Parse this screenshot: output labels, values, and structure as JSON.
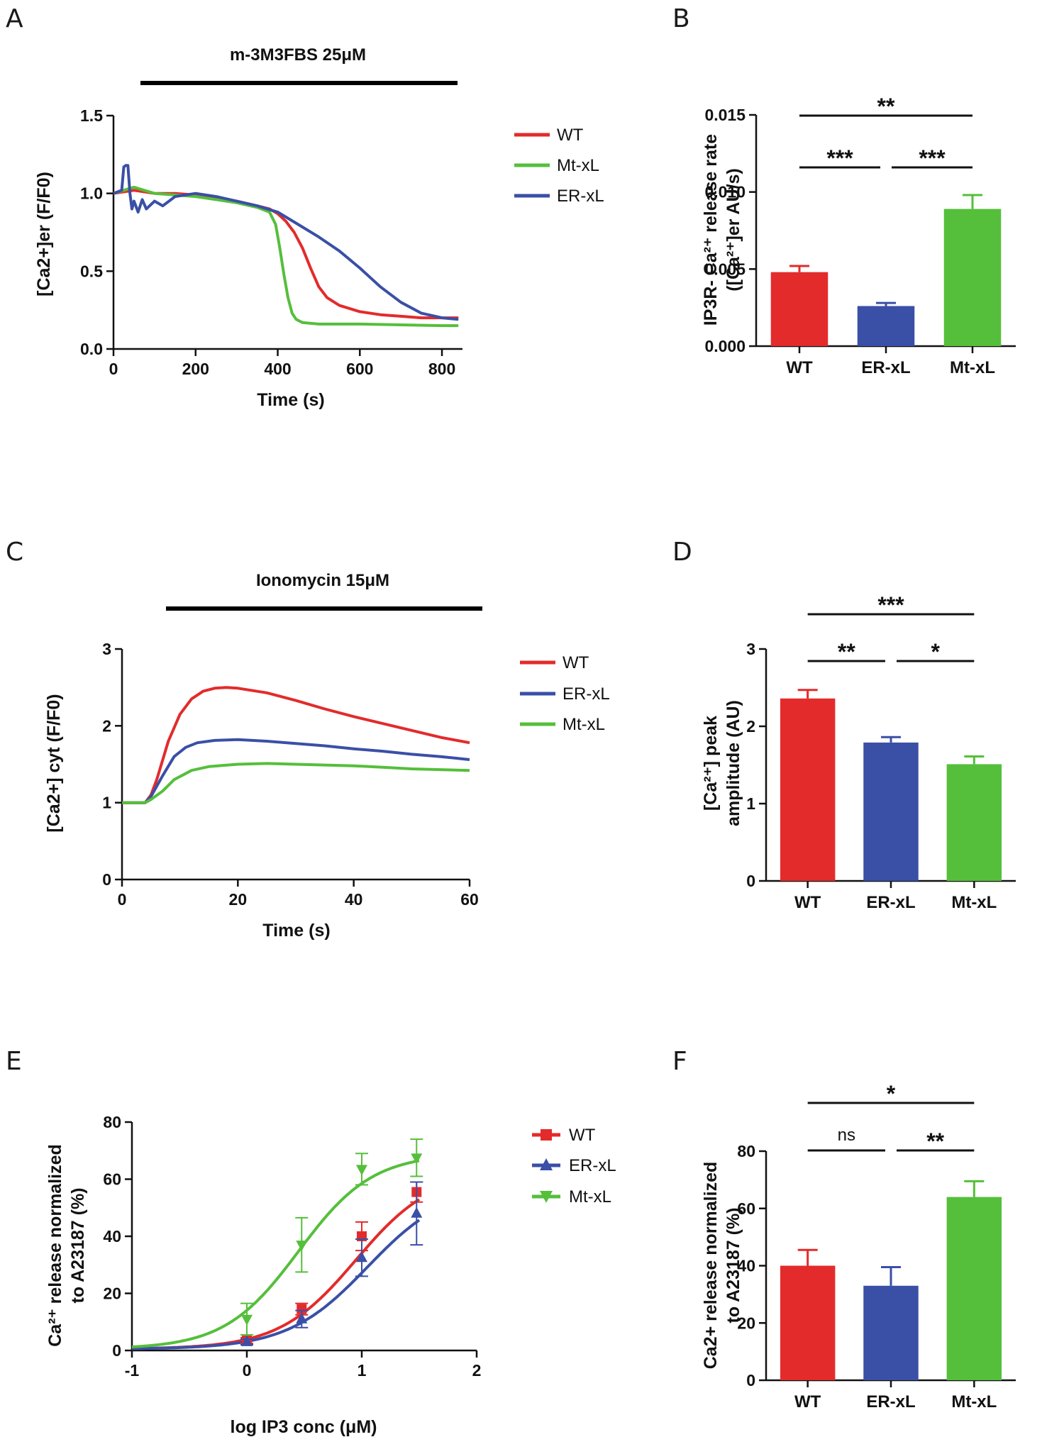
{
  "chart_data": [
    {
      "id": "A",
      "type": "line",
      "panel_label": "A",
      "treatment": "m-3M3FBS 25μM",
      "xlabel": "Time (s)",
      "ylabel": "[Ca2+]er (F/F0)",
      "xlim": [
        0,
        850
      ],
      "ylim": [
        0,
        1.5
      ],
      "xticks": [
        0,
        200,
        400,
        600,
        800
      ],
      "yticks": [
        0.0,
        0.5,
        1.0,
        1.5
      ],
      "ytick_labels": [
        "0.0",
        "0.5",
        "1.0",
        "1.5"
      ],
      "legend": [
        "WT",
        "Mt-xL",
        "ER-xL"
      ],
      "series": [
        {
          "name": "WT",
          "color": "#e32b2b",
          "x": [
            0,
            50,
            100,
            150,
            200,
            250,
            300,
            350,
            380,
            400,
            420,
            440,
            460,
            480,
            500,
            520,
            550,
            600,
            650,
            700,
            750,
            800,
            840
          ],
          "y": [
            1.0,
            1.02,
            1.0,
            1.0,
            0.99,
            0.97,
            0.95,
            0.92,
            0.9,
            0.87,
            0.82,
            0.75,
            0.65,
            0.52,
            0.4,
            0.33,
            0.28,
            0.24,
            0.22,
            0.21,
            0.2,
            0.2,
            0.2
          ]
        },
        {
          "name": "Mt-xL",
          "color": "#55bf3b",
          "x": [
            0,
            50,
            100,
            150,
            200,
            250,
            300,
            350,
            380,
            395,
            405,
            415,
            425,
            435,
            445,
            460,
            500,
            600,
            700,
            800,
            840
          ],
          "y": [
            1.0,
            1.04,
            1.0,
            0.99,
            0.98,
            0.96,
            0.94,
            0.91,
            0.88,
            0.8,
            0.65,
            0.48,
            0.33,
            0.23,
            0.19,
            0.17,
            0.16,
            0.16,
            0.155,
            0.15,
            0.15
          ]
        },
        {
          "name": "ER-xL",
          "color": "#3a4fa6",
          "x": [
            0,
            20,
            25,
            30,
            35,
            40,
            45,
            50,
            60,
            70,
            80,
            100,
            120,
            150,
            200,
            250,
            300,
            350,
            400,
            450,
            500,
            550,
            600,
            650,
            700,
            750,
            800,
            840
          ],
          "y": [
            1.0,
            1.02,
            1.17,
            1.18,
            1.18,
            1.0,
            0.9,
            0.95,
            0.88,
            0.96,
            0.9,
            0.95,
            0.92,
            0.98,
            1.0,
            0.98,
            0.95,
            0.92,
            0.88,
            0.8,
            0.72,
            0.63,
            0.52,
            0.4,
            0.3,
            0.23,
            0.2,
            0.19
          ]
        }
      ]
    },
    {
      "id": "B",
      "type": "bar",
      "panel_label": "B",
      "ylabel_line1": "IP3R- Ca²⁺ release rate",
      "ylabel_line2": "([Ca²⁺]er AU/s)",
      "ylim": [
        0,
        0.015
      ],
      "yticks": [
        0.0,
        0.005,
        0.01,
        0.015
      ],
      "ytick_labels": [
        "0.000",
        "0.005",
        "0.010",
        "0.015"
      ],
      "categories": [
        "WT",
        "ER-xL",
        "Mt-xL"
      ],
      "values": [
        0.0048,
        0.0026,
        0.0089
      ],
      "errors": [
        0.0004,
        0.0002,
        0.0009
      ],
      "colors": [
        "#e32b2b",
        "#3a4fa6",
        "#55bf3b"
      ],
      "significance": [
        {
          "from": 0,
          "to": 2,
          "label": "**"
        },
        {
          "from": 0,
          "to": 1,
          "label": "***"
        },
        {
          "from": 1,
          "to": 2,
          "label": "***"
        }
      ]
    },
    {
      "id": "C",
      "type": "line",
      "panel_label": "C",
      "treatment": "Ionomycin 15μM",
      "xlabel": "Time (s)",
      "ylabel": "[Ca2+] cyt (F/F0)",
      "xlim": [
        0,
        60
      ],
      "ylim": [
        0,
        3
      ],
      "xticks": [
        0,
        20,
        40,
        60
      ],
      "yticks": [
        0,
        1,
        2,
        3
      ],
      "ytick_labels": [
        "0",
        "1",
        "2",
        "3"
      ],
      "legend": [
        "WT",
        "ER-xL",
        "Mt-xL"
      ],
      "series": [
        {
          "name": "WT",
          "color": "#e32b2b",
          "x": [
            0,
            4,
            5,
            6,
            8,
            10,
            12,
            14,
            16,
            18,
            20,
            25,
            30,
            35,
            40,
            45,
            50,
            55,
            60
          ],
          "y": [
            1.0,
            1.0,
            1.1,
            1.3,
            1.8,
            2.15,
            2.35,
            2.45,
            2.49,
            2.5,
            2.49,
            2.43,
            2.33,
            2.22,
            2.12,
            2.03,
            1.94,
            1.85,
            1.78
          ]
        },
        {
          "name": "ER-xL",
          "color": "#3a4fa6",
          "x": [
            0,
            4,
            5,
            7,
            9,
            11,
            13,
            16,
            20,
            25,
            30,
            35,
            40,
            45,
            50,
            55,
            60
          ],
          "y": [
            1.0,
            1.0,
            1.08,
            1.35,
            1.6,
            1.72,
            1.78,
            1.81,
            1.82,
            1.8,
            1.77,
            1.74,
            1.7,
            1.67,
            1.63,
            1.6,
            1.56
          ]
        },
        {
          "name": "Mt-xL",
          "color": "#55bf3b",
          "x": [
            0,
            4,
            5,
            7,
            9,
            12,
            15,
            20,
            25,
            30,
            35,
            40,
            45,
            50,
            55,
            60
          ],
          "y": [
            1.0,
            1.0,
            1.04,
            1.15,
            1.3,
            1.42,
            1.47,
            1.5,
            1.51,
            1.5,
            1.49,
            1.48,
            1.46,
            1.44,
            1.43,
            1.42
          ]
        }
      ]
    },
    {
      "id": "D",
      "type": "bar",
      "panel_label": "D",
      "ylabel_line1": "[Ca²⁺] peak",
      "ylabel_line2": "amplitude (AU)",
      "ylim": [
        0,
        3
      ],
      "yticks": [
        0,
        1,
        2,
        3
      ],
      "ytick_labels": [
        "0",
        "1",
        "2",
        "3"
      ],
      "categories": [
        "WT",
        "ER-xL",
        "Mt-xL"
      ],
      "values": [
        2.36,
        1.79,
        1.51
      ],
      "errors": [
        0.11,
        0.07,
        0.1
      ],
      "colors": [
        "#e32b2b",
        "#3a4fa6",
        "#55bf3b"
      ],
      "significance": [
        {
          "from": 0,
          "to": 2,
          "label": "***"
        },
        {
          "from": 0,
          "to": 1,
          "label": "**"
        },
        {
          "from": 1,
          "to": 2,
          "label": "*"
        }
      ]
    },
    {
      "id": "E",
      "type": "scatter",
      "panel_label": "E",
      "xlabel": "log IP3 conc (μM)",
      "ylabel_line1": "Ca²⁺ release normalized",
      "ylabel_line2": "to A23187 (%)",
      "xlim": [
        -1,
        2
      ],
      "ylim": [
        0,
        80
      ],
      "xticks": [
        -1,
        0,
        1,
        2
      ],
      "yticks": [
        0,
        20,
        40,
        60,
        80
      ],
      "ytick_labels": [
        "0",
        "20",
        "40",
        "60",
        "80"
      ],
      "xtick_labels": [
        "-1",
        "0",
        "1",
        "2"
      ],
      "legend": [
        "WT",
        "ER-xL",
        "Mt-xL"
      ],
      "series": [
        {
          "name": "WT",
          "color": "#e32b2b",
          "marker": "square",
          "x": [
            0,
            0.477,
            1,
            1.477
          ],
          "y": [
            3.5,
            14.5,
            40,
            55.5
          ],
          "err": [
            1,
            2,
            5,
            3.5
          ],
          "fit": {
            "bottom": 0.5,
            "top": 63,
            "logEC50": 0.95,
            "hill": 1.3
          }
        },
        {
          "name": "ER-xL",
          "color": "#3a4fa6",
          "marker": "triangle-up",
          "x": [
            0,
            0.477,
            1,
            1.477
          ],
          "y": [
            3,
            11,
            32.5,
            48
          ],
          "err": [
            1,
            3,
            6.5,
            11
          ],
          "fit": {
            "bottom": 0.5,
            "top": 58,
            "logEC50": 1.05,
            "hill": 1.25
          }
        },
        {
          "name": "Mt-xL",
          "color": "#55bf3b",
          "marker": "triangle-down",
          "x": [
            0,
            0.477,
            1,
            1.477
          ],
          "y": [
            11,
            37,
            63.5,
            67.5
          ],
          "err": [
            5.5,
            9.5,
            5.5,
            6.5
          ],
          "fit": {
            "bottom": 0.5,
            "top": 69,
            "logEC50": 0.45,
            "hill": 1.35
          }
        }
      ]
    },
    {
      "id": "F",
      "type": "bar",
      "panel_label": "F",
      "ylabel_line1": "Ca2+ release normalized",
      "ylabel_line2": "to A23187 (%)",
      "ylim": [
        0,
        80
      ],
      "yticks": [
        0,
        20,
        40,
        60,
        80
      ],
      "ytick_labels": [
        "0",
        "20",
        "40",
        "60",
        "80"
      ],
      "categories": [
        "WT",
        "ER-xL",
        "Mt-xL"
      ],
      "values": [
        40,
        33,
        64
      ],
      "errors": [
        5.5,
        6.5,
        5.5
      ],
      "colors": [
        "#e32b2b",
        "#3a4fa6",
        "#55bf3b"
      ],
      "significance": [
        {
          "from": 0,
          "to": 2,
          "label": "*"
        },
        {
          "from": 0,
          "to": 1,
          "label": "ns"
        },
        {
          "from": 1,
          "to": 2,
          "label": "**"
        }
      ]
    }
  ]
}
